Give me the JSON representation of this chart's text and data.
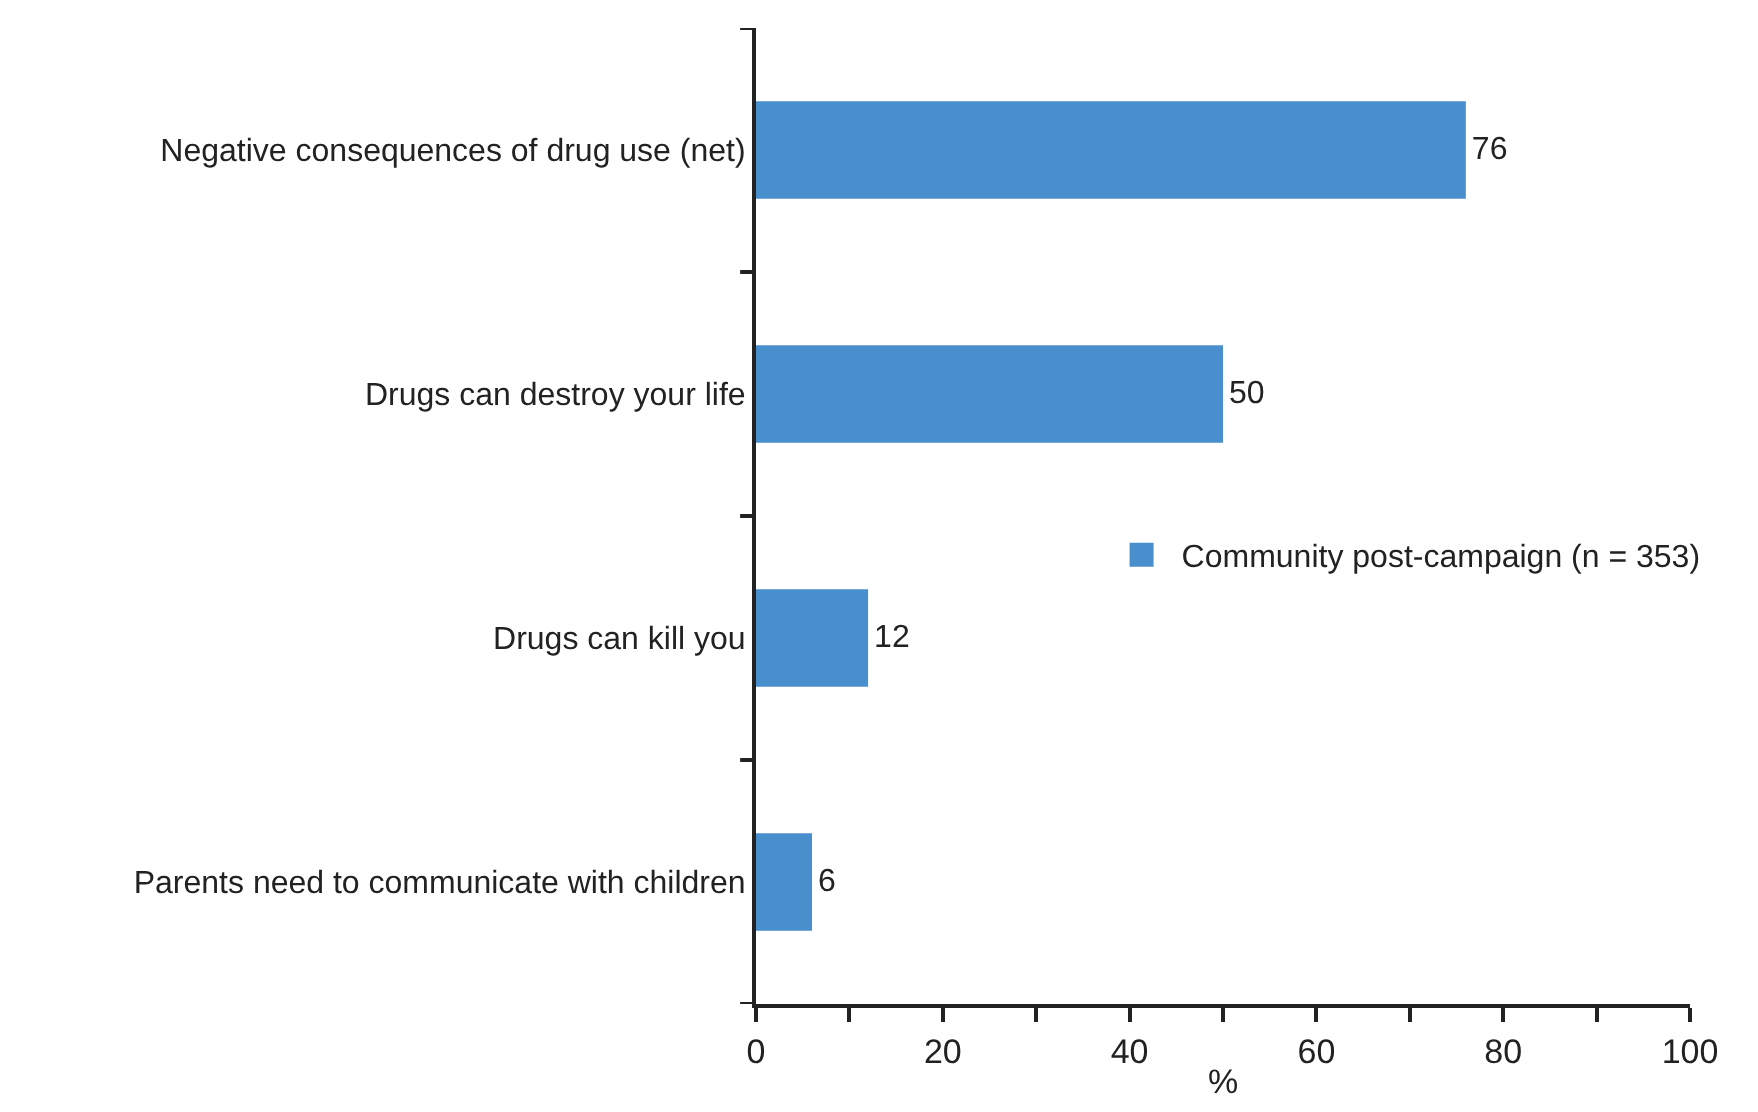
{
  "chart_data": {
    "type": "bar",
    "orientation": "horizontal",
    "categories": [
      "Negative consequences of drug use (net)",
      "Drugs can destroy your life",
      "Drugs can kill you",
      "Parents need to communicate with children"
    ],
    "series": [
      {
        "name": "Community post-campaign (n = 353)",
        "color": "#4a8fcd",
        "values": [
          76,
          50,
          12,
          6
        ]
      }
    ],
    "xlabel": "%",
    "xlim": [
      0,
      100
    ],
    "xticks": [
      0,
      {
        "value": 10,
        "label": null
      },
      20,
      {
        "value": 30,
        "label": null
      },
      40,
      {
        "value": 50,
        "label": null
      },
      60,
      {
        "value": 70,
        "label": null
      },
      80,
      {
        "value": 90,
        "label": null
      },
      100
    ],
    "data_labels": true,
    "grid": false,
    "legend": "right"
  }
}
